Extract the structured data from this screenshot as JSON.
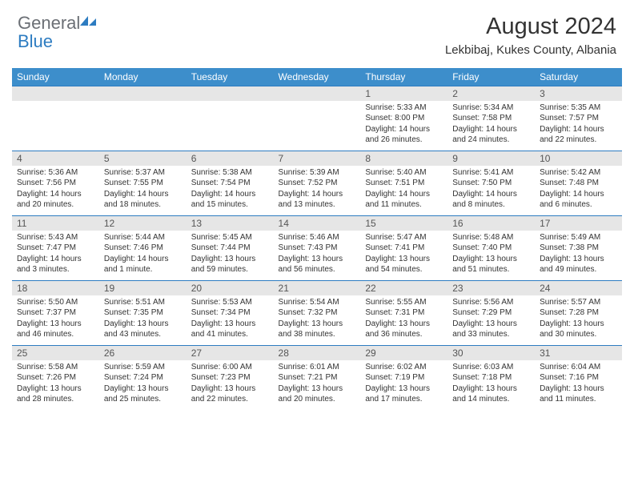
{
  "logo": {
    "text1": "General",
    "text2": "Blue"
  },
  "title": "August 2024",
  "location": "Lekbibaj, Kukes County, Albania",
  "colors": {
    "header_bg": "#3d8ecb",
    "header_text": "#ffffff",
    "divider": "#2d7cc1",
    "daynum_bg": "#e6e6e6",
    "body_text": "#333333",
    "logo_gray": "#6b6f75",
    "logo_blue": "#2d7cc1"
  },
  "day_headers": [
    "Sunday",
    "Monday",
    "Tuesday",
    "Wednesday",
    "Thursday",
    "Friday",
    "Saturday"
  ],
  "weeks": [
    [
      {
        "num": "",
        "sunrise": "",
        "sunset": "",
        "daylight": ""
      },
      {
        "num": "",
        "sunrise": "",
        "sunset": "",
        "daylight": ""
      },
      {
        "num": "",
        "sunrise": "",
        "sunset": "",
        "daylight": ""
      },
      {
        "num": "",
        "sunrise": "",
        "sunset": "",
        "daylight": ""
      },
      {
        "num": "1",
        "sunrise": "Sunrise: 5:33 AM",
        "sunset": "Sunset: 8:00 PM",
        "daylight": "Daylight: 14 hours and 26 minutes."
      },
      {
        "num": "2",
        "sunrise": "Sunrise: 5:34 AM",
        "sunset": "Sunset: 7:58 PM",
        "daylight": "Daylight: 14 hours and 24 minutes."
      },
      {
        "num": "3",
        "sunrise": "Sunrise: 5:35 AM",
        "sunset": "Sunset: 7:57 PM",
        "daylight": "Daylight: 14 hours and 22 minutes."
      }
    ],
    [
      {
        "num": "4",
        "sunrise": "Sunrise: 5:36 AM",
        "sunset": "Sunset: 7:56 PM",
        "daylight": "Daylight: 14 hours and 20 minutes."
      },
      {
        "num": "5",
        "sunrise": "Sunrise: 5:37 AM",
        "sunset": "Sunset: 7:55 PM",
        "daylight": "Daylight: 14 hours and 18 minutes."
      },
      {
        "num": "6",
        "sunrise": "Sunrise: 5:38 AM",
        "sunset": "Sunset: 7:54 PM",
        "daylight": "Daylight: 14 hours and 15 minutes."
      },
      {
        "num": "7",
        "sunrise": "Sunrise: 5:39 AM",
        "sunset": "Sunset: 7:52 PM",
        "daylight": "Daylight: 14 hours and 13 minutes."
      },
      {
        "num": "8",
        "sunrise": "Sunrise: 5:40 AM",
        "sunset": "Sunset: 7:51 PM",
        "daylight": "Daylight: 14 hours and 11 minutes."
      },
      {
        "num": "9",
        "sunrise": "Sunrise: 5:41 AM",
        "sunset": "Sunset: 7:50 PM",
        "daylight": "Daylight: 14 hours and 8 minutes."
      },
      {
        "num": "10",
        "sunrise": "Sunrise: 5:42 AM",
        "sunset": "Sunset: 7:48 PM",
        "daylight": "Daylight: 14 hours and 6 minutes."
      }
    ],
    [
      {
        "num": "11",
        "sunrise": "Sunrise: 5:43 AM",
        "sunset": "Sunset: 7:47 PM",
        "daylight": "Daylight: 14 hours and 3 minutes."
      },
      {
        "num": "12",
        "sunrise": "Sunrise: 5:44 AM",
        "sunset": "Sunset: 7:46 PM",
        "daylight": "Daylight: 14 hours and 1 minute."
      },
      {
        "num": "13",
        "sunrise": "Sunrise: 5:45 AM",
        "sunset": "Sunset: 7:44 PM",
        "daylight": "Daylight: 13 hours and 59 minutes."
      },
      {
        "num": "14",
        "sunrise": "Sunrise: 5:46 AM",
        "sunset": "Sunset: 7:43 PM",
        "daylight": "Daylight: 13 hours and 56 minutes."
      },
      {
        "num": "15",
        "sunrise": "Sunrise: 5:47 AM",
        "sunset": "Sunset: 7:41 PM",
        "daylight": "Daylight: 13 hours and 54 minutes."
      },
      {
        "num": "16",
        "sunrise": "Sunrise: 5:48 AM",
        "sunset": "Sunset: 7:40 PM",
        "daylight": "Daylight: 13 hours and 51 minutes."
      },
      {
        "num": "17",
        "sunrise": "Sunrise: 5:49 AM",
        "sunset": "Sunset: 7:38 PM",
        "daylight": "Daylight: 13 hours and 49 minutes."
      }
    ],
    [
      {
        "num": "18",
        "sunrise": "Sunrise: 5:50 AM",
        "sunset": "Sunset: 7:37 PM",
        "daylight": "Daylight: 13 hours and 46 minutes."
      },
      {
        "num": "19",
        "sunrise": "Sunrise: 5:51 AM",
        "sunset": "Sunset: 7:35 PM",
        "daylight": "Daylight: 13 hours and 43 minutes."
      },
      {
        "num": "20",
        "sunrise": "Sunrise: 5:53 AM",
        "sunset": "Sunset: 7:34 PM",
        "daylight": "Daylight: 13 hours and 41 minutes."
      },
      {
        "num": "21",
        "sunrise": "Sunrise: 5:54 AM",
        "sunset": "Sunset: 7:32 PM",
        "daylight": "Daylight: 13 hours and 38 minutes."
      },
      {
        "num": "22",
        "sunrise": "Sunrise: 5:55 AM",
        "sunset": "Sunset: 7:31 PM",
        "daylight": "Daylight: 13 hours and 36 minutes."
      },
      {
        "num": "23",
        "sunrise": "Sunrise: 5:56 AM",
        "sunset": "Sunset: 7:29 PM",
        "daylight": "Daylight: 13 hours and 33 minutes."
      },
      {
        "num": "24",
        "sunrise": "Sunrise: 5:57 AM",
        "sunset": "Sunset: 7:28 PM",
        "daylight": "Daylight: 13 hours and 30 minutes."
      }
    ],
    [
      {
        "num": "25",
        "sunrise": "Sunrise: 5:58 AM",
        "sunset": "Sunset: 7:26 PM",
        "daylight": "Daylight: 13 hours and 28 minutes."
      },
      {
        "num": "26",
        "sunrise": "Sunrise: 5:59 AM",
        "sunset": "Sunset: 7:24 PM",
        "daylight": "Daylight: 13 hours and 25 minutes."
      },
      {
        "num": "27",
        "sunrise": "Sunrise: 6:00 AM",
        "sunset": "Sunset: 7:23 PM",
        "daylight": "Daylight: 13 hours and 22 minutes."
      },
      {
        "num": "28",
        "sunrise": "Sunrise: 6:01 AM",
        "sunset": "Sunset: 7:21 PM",
        "daylight": "Daylight: 13 hours and 20 minutes."
      },
      {
        "num": "29",
        "sunrise": "Sunrise: 6:02 AM",
        "sunset": "Sunset: 7:19 PM",
        "daylight": "Daylight: 13 hours and 17 minutes."
      },
      {
        "num": "30",
        "sunrise": "Sunrise: 6:03 AM",
        "sunset": "Sunset: 7:18 PM",
        "daylight": "Daylight: 13 hours and 14 minutes."
      },
      {
        "num": "31",
        "sunrise": "Sunrise: 6:04 AM",
        "sunset": "Sunset: 7:16 PM",
        "daylight": "Daylight: 13 hours and 11 minutes."
      }
    ]
  ]
}
